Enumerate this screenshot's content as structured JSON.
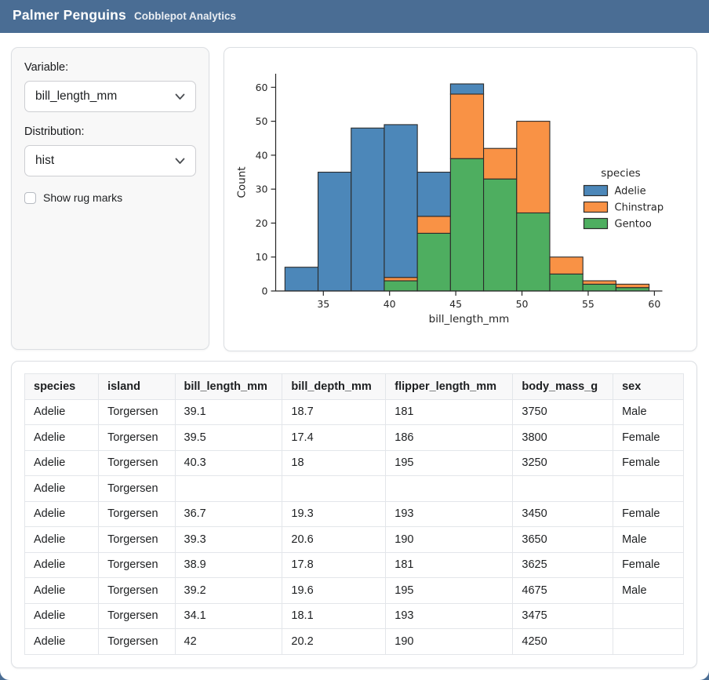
{
  "header": {
    "title": "Palmer Penguins",
    "subtitle": "Cobblepot Analytics"
  },
  "sidebar": {
    "variable_label": "Variable:",
    "variable_value": "bill_length_mm",
    "distribution_label": "Distribution:",
    "distribution_value": "hist",
    "rug_label": "Show rug marks",
    "rug_checked": false
  },
  "chart_data": {
    "type": "histogram-stacked",
    "xlabel": "bill_length_mm",
    "ylabel": "Count",
    "xlim": [
      31.4,
      60.6
    ],
    "ylim": [
      0,
      64
    ],
    "xticks": [
      35,
      40,
      45,
      50,
      55,
      60
    ],
    "yticks": [
      0,
      10,
      20,
      30,
      40,
      50,
      60
    ],
    "bin_start": 32.1,
    "bin_width": 2.5,
    "edge_color": "#2b2b2b",
    "legend_title": "species",
    "legend_order": [
      "Adelie",
      "Chinstrap",
      "Gentoo"
    ],
    "series": [
      {
        "name": "Gentoo",
        "color": "#4eae60",
        "values": [
          0,
          0,
          0,
          3,
          17,
          39,
          33,
          23,
          5,
          2,
          1
        ]
      },
      {
        "name": "Chinstrap",
        "color": "#f99245",
        "values": [
          0,
          0,
          0,
          1,
          5,
          19,
          9,
          27,
          5,
          1,
          1
        ]
      },
      {
        "name": "Adelie",
        "color": "#4c87b9",
        "values": [
          7,
          35,
          48,
          45,
          13,
          3,
          0,
          0,
          0,
          0,
          0
        ]
      }
    ]
  },
  "table": {
    "columns": [
      "species",
      "island",
      "bill_length_mm",
      "bill_depth_mm",
      "flipper_length_mm",
      "body_mass_g",
      "sex"
    ],
    "col_widths": [
      "11.2%",
      "11.6%",
      "16.3%",
      "15.7%",
      "19.3%",
      "15.2%",
      "10.7%"
    ],
    "rows": [
      [
        "Adelie",
        "Torgersen",
        "39.1",
        "18.7",
        "181",
        "3750",
        "Male"
      ],
      [
        "Adelie",
        "Torgersen",
        "39.5",
        "17.4",
        "186",
        "3800",
        "Female"
      ],
      [
        "Adelie",
        "Torgersen",
        "40.3",
        "18",
        "195",
        "3250",
        "Female"
      ],
      [
        "Adelie",
        "Torgersen",
        "",
        "",
        "",
        "",
        ""
      ],
      [
        "Adelie",
        "Torgersen",
        "36.7",
        "19.3",
        "193",
        "3450",
        "Female"
      ],
      [
        "Adelie",
        "Torgersen",
        "39.3",
        "20.6",
        "190",
        "3650",
        "Male"
      ],
      [
        "Adelie",
        "Torgersen",
        "38.9",
        "17.8",
        "181",
        "3625",
        "Female"
      ],
      [
        "Adelie",
        "Torgersen",
        "39.2",
        "19.6",
        "195",
        "4675",
        "Male"
      ],
      [
        "Adelie",
        "Torgersen",
        "34.1",
        "18.1",
        "193",
        "3475",
        ""
      ],
      [
        "Adelie",
        "Torgersen",
        "42",
        "20.2",
        "190",
        "4250",
        ""
      ]
    ]
  },
  "colors": {
    "navbar_bg": "#4a6d94",
    "sidebar_bg": "#f8f8f8",
    "card_border": "#dcdfe3"
  }
}
